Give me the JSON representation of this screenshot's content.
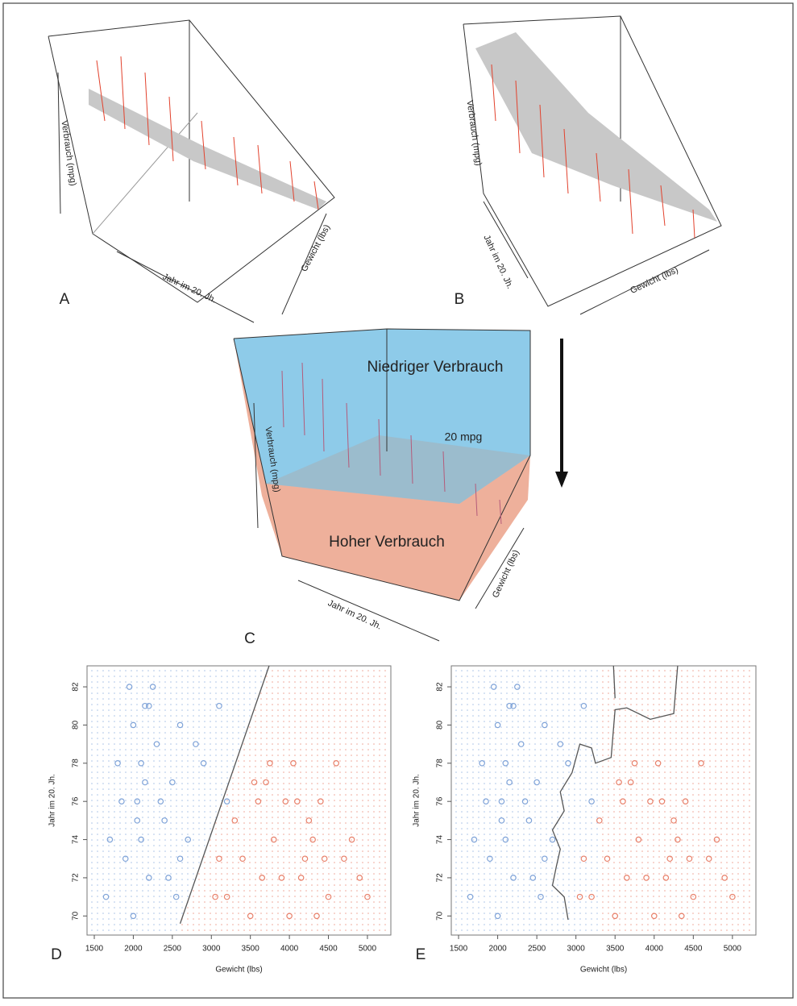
{
  "panels": {
    "A": {
      "label": "A",
      "z_axis": "Verbrauch (mpg)",
      "y_axis": "Jahr im 20. Jh.",
      "x_axis": "Gewicht (lbs)"
    },
    "B": {
      "label": "B",
      "z_axis": "Verbrauch (mpg)",
      "y_axis": "Jahr im 20. Jh.",
      "x_axis": "Gewicht (lbs)"
    },
    "C": {
      "label": "C",
      "z_axis": "Verbrauch (mpg)",
      "y_axis": "Jahr im 20. Jh.",
      "x_axis": "Gewicht (lbs)",
      "upper_region": "Niedriger Verbrauch",
      "plane": "20 mpg",
      "lower_region": "Hoher Verbrauch"
    }
  },
  "chart_data": [
    {
      "type": "scatter",
      "label": "D",
      "xlabel": "Gewicht (lbs)",
      "ylabel": "Jahr im 20. Jh.",
      "xlim": [
        1407,
        5300
      ],
      "ylim": [
        69.0,
        83.1
      ],
      "xticks": [
        1500,
        2000,
        2500,
        3000,
        3500,
        4000,
        4500,
        5000
      ],
      "yticks": [
        70,
        72,
        74,
        76,
        78,
        80,
        82
      ],
      "grid_color_low": "#a9c2e6",
      "grid_color_high": "#eea596",
      "series": [
        {
          "color": "#7fa3d8",
          "x": [
            1650,
            1800,
            1950,
            2000,
            2050,
            2100,
            2150,
            2200,
            2300,
            2400,
            2500,
            1900,
            2000,
            2100,
            2250,
            2350,
            2600,
            2700,
            2800,
            1700,
            2050,
            2150,
            2450,
            2550,
            2900,
            3100,
            2200,
            1850,
            2600,
            3200
          ],
          "values": [
            71,
            78,
            82,
            80,
            76,
            74,
            81,
            72,
            79,
            75,
            77,
            73,
            70,
            78,
            82,
            76,
            80,
            74,
            79,
            74,
            75,
            77,
            72,
            71,
            78,
            81,
            81,
            76,
            73,
            76
          ]
        },
        {
          "color": "#e8806a",
          "x": [
            3100,
            3300,
            3500,
            3700,
            3900,
            4100,
            4300,
            4500,
            4700,
            4900,
            3200,
            3600,
            3800,
            4000,
            4200,
            4400,
            4600,
            4800,
            5000,
            3400,
            3550,
            3750,
            3950,
            4150,
            4350,
            4250,
            4450,
            3050,
            3650,
            4050
          ],
          "values": [
            73,
            75,
            70,
            77,
            72,
            76,
            74,
            71,
            73,
            72,
            71,
            76,
            74,
            70,
            73,
            76,
            78,
            74,
            71,
            73,
            77,
            78,
            76,
            72,
            70,
            75,
            73,
            71,
            72,
            78
          ]
        }
      ],
      "boundary": {
        "color": "#555555",
        "x": [
          2600,
          3740
        ],
        "values": [
          69.6,
          83.1
        ]
      }
    },
    {
      "type": "scatter",
      "label": "E",
      "xlabel": "Gewicht (lbs)",
      "ylabel": "Jahr im 20. Jh.",
      "xlim": [
        1407,
        5300
      ],
      "ylim": [
        69.0,
        83.1
      ],
      "xticks": [
        1500,
        2000,
        2500,
        3000,
        3500,
        4000,
        4500,
        5000
      ],
      "yticks": [
        70,
        72,
        74,
        76,
        78,
        80,
        82
      ],
      "grid_color_low": "#a9c2e6",
      "grid_color_high": "#eea596",
      "series": [
        {
          "color": "#7fa3d8",
          "x": [
            1650,
            1800,
            1950,
            2000,
            2050,
            2100,
            2150,
            2200,
            2300,
            2400,
            2500,
            1900,
            2000,
            2100,
            2250,
            2350,
            2600,
            2700,
            2800,
            1700,
            2050,
            2150,
            2450,
            2550,
            2900,
            3100,
            2200,
            1850,
            2600,
            3200
          ],
          "values": [
            71,
            78,
            82,
            80,
            76,
            74,
            81,
            72,
            79,
            75,
            77,
            73,
            70,
            78,
            82,
            76,
            80,
            74,
            79,
            74,
            75,
            77,
            72,
            71,
            78,
            81,
            81,
            76,
            73,
            76
          ]
        },
        {
          "color": "#e8806a",
          "x": [
            3100,
            3300,
            3500,
            3700,
            3900,
            4100,
            4300,
            4500,
            4700,
            4900,
            3200,
            3600,
            3800,
            4000,
            4200,
            4400,
            4600,
            4800,
            5000,
            3400,
            3550,
            3750,
            3950,
            4150,
            4350,
            4250,
            4450,
            3050,
            3650,
            4050
          ],
          "values": [
            73,
            75,
            70,
            77,
            72,
            76,
            74,
            71,
            73,
            72,
            71,
            76,
            74,
            70,
            73,
            76,
            78,
            74,
            71,
            73,
            77,
            78,
            76,
            72,
            70,
            75,
            73,
            71,
            72,
            78
          ]
        }
      ],
      "boundary": {
        "color": "#555555",
        "x": [
          2900,
          2850,
          2700,
          2750,
          2800,
          2700,
          2850,
          2800,
          2950,
          3050,
          3200,
          3250,
          3450,
          3500,
          3650,
          3950,
          4250,
          4300,
          null,
          3480,
          3500
        ],
        "values": [
          69.8,
          71,
          71.6,
          72.6,
          73.5,
          74.5,
          75.5,
          76.5,
          77.5,
          79,
          78.8,
          78,
          78.3,
          80.8,
          80.9,
          80.3,
          80.6,
          83.1,
          null,
          83.1,
          81.4
        ]
      }
    }
  ]
}
